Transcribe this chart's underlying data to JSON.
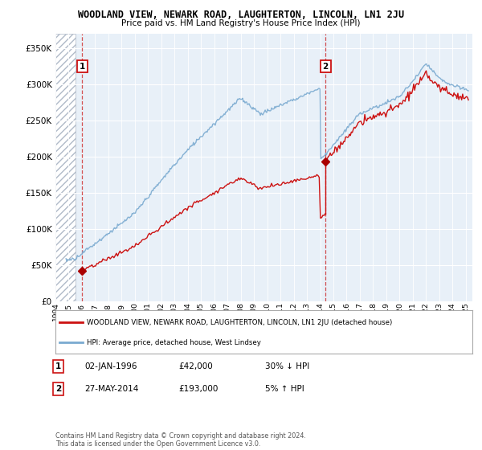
{
  "title": "WOODLAND VIEW, NEWARK ROAD, LAUGHTERTON, LINCOLN, LN1 2JU",
  "subtitle": "Price paid vs. HM Land Registry's House Price Index (HPI)",
  "legend_line1": "WOODLAND VIEW, NEWARK ROAD, LAUGHTERTON, LINCOLN, LN1 2JU (detached house)",
  "legend_line2": "HPI: Average price, detached house, West Lindsey",
  "ann1_label": "1",
  "ann1_date": "02-JAN-1996",
  "ann1_price": "£42,000",
  "ann1_hpi": "30% ↓ HPI",
  "ann1_x": 1996.02,
  "ann1_y": 42000,
  "ann2_label": "2",
  "ann2_date": "27-MAY-2014",
  "ann2_price": "£193,000",
  "ann2_hpi": "5% ↑ HPI",
  "ann2_x": 2014.4,
  "ann2_y": 193000,
  "footer": "Contains HM Land Registry data © Crown copyright and database right 2024.\nThis data is licensed under the Open Government Licence v3.0.",
  "xlim": [
    1994.0,
    2025.5
  ],
  "ylim": [
    0,
    370000
  ],
  "yticks": [
    0,
    50000,
    100000,
    150000,
    200000,
    250000,
    300000,
    350000
  ],
  "xticks": [
    1994,
    1995,
    1996,
    1997,
    1998,
    1999,
    2000,
    2001,
    2002,
    2003,
    2004,
    2005,
    2006,
    2007,
    2008,
    2009,
    2010,
    2011,
    2012,
    2013,
    2014,
    2015,
    2016,
    2017,
    2018,
    2019,
    2020,
    2021,
    2022,
    2023,
    2024,
    2025
  ],
  "hatch_xend": 1995.5,
  "plot_bg": "#e8f0f8",
  "hatch_bg": "#ffffff",
  "hatch_color": "#b0bac8",
  "grid_color": "#ffffff",
  "red_color": "#cc1111",
  "blue_color": "#7aaad0",
  "vline_color": "#cc3333",
  "marker_color": "#aa0000"
}
